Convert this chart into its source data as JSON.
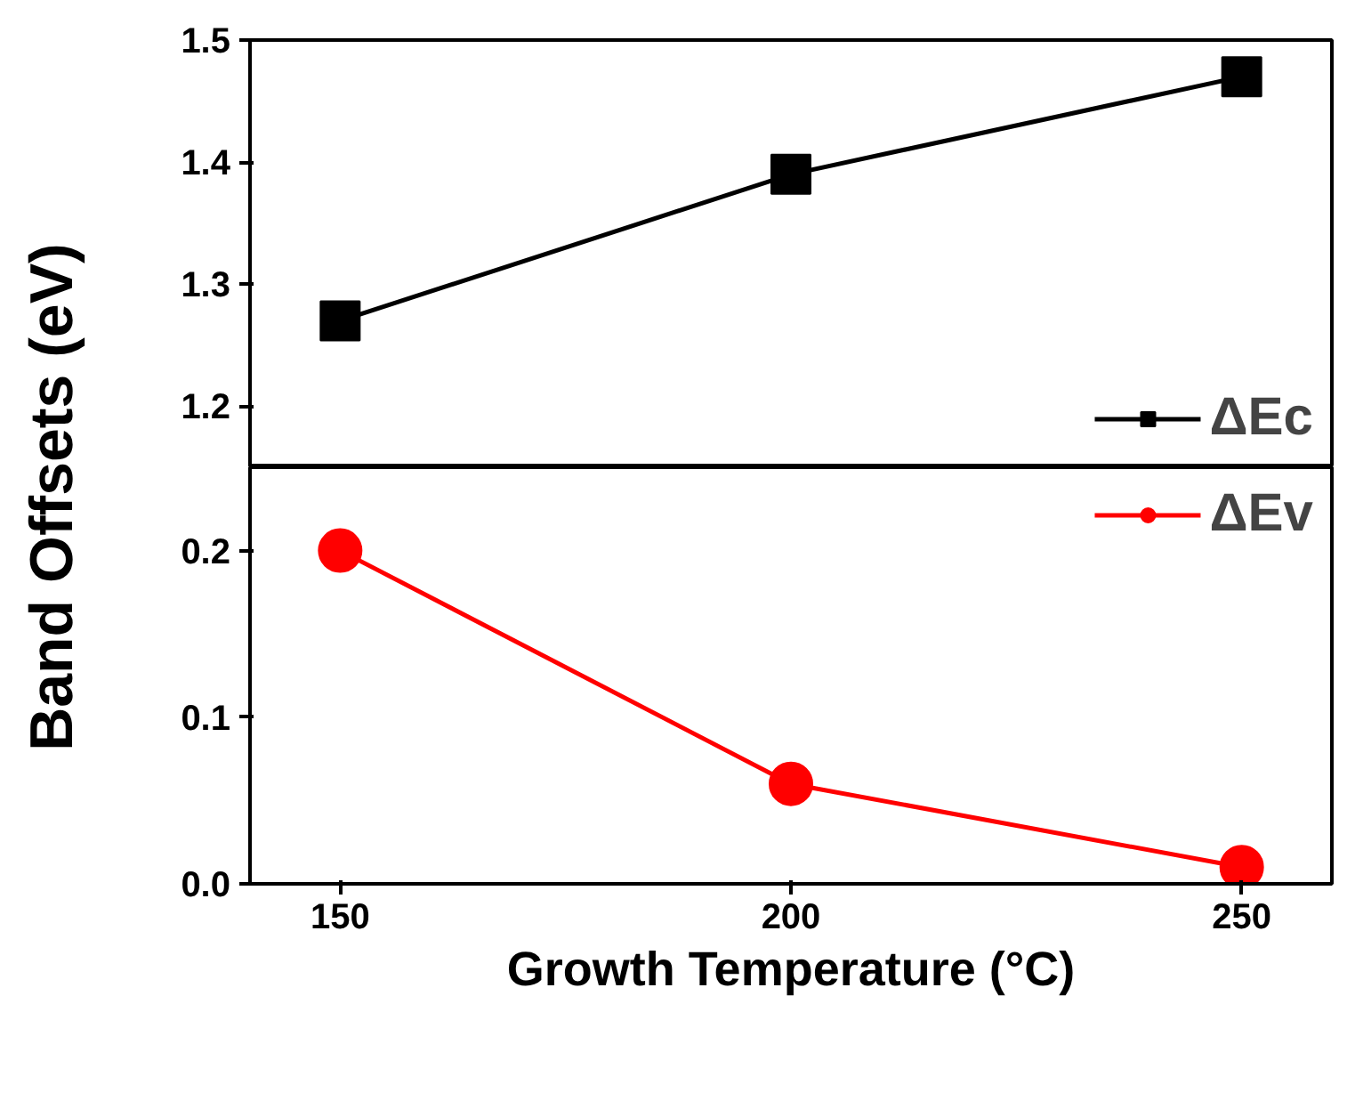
{
  "chart_data": [
    {
      "type": "line",
      "ylabel": "Band Offsets (eV)",
      "x": [
        150,
        200,
        250
      ],
      "xlim": [
        140,
        260
      ],
      "ylim": [
        1.15,
        1.5
      ],
      "yticks": [
        1.2,
        1.3,
        1.4,
        1.5
      ],
      "tick_labels": "y",
      "marker": "square",
      "line_style": "solid",
      "grid": false,
      "legend": "bottom right",
      "series": [
        {
          "name": "ΔEc",
          "color": "#000000",
          "values": [
            1.27,
            1.39,
            1.47
          ]
        }
      ]
    },
    {
      "type": "line",
      "xlabel": "Growth Temperature (°C)",
      "x": [
        150,
        200,
        250
      ],
      "xlim": [
        140,
        260
      ],
      "xticks": [
        150,
        200,
        250
      ],
      "ylim": [
        0,
        0.25
      ],
      "yticks": [
        {
          "value": 0,
          "label": "0.0"
        },
        0.1,
        0.2
      ],
      "marker": "circle",
      "line_style": "solid",
      "grid": false,
      "legend": "top right",
      "series": [
        {
          "name": "ΔEv",
          "color": "#ff0000",
          "values": [
            0.2,
            0.06,
            0.01
          ]
        }
      ]
    }
  ]
}
